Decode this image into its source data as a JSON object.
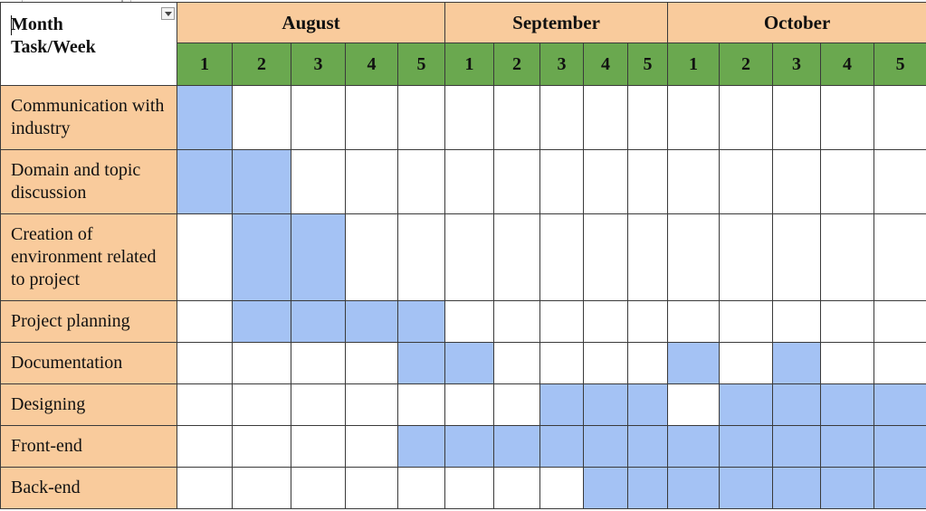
{
  "header": {
    "corner_label": "Month\nTask/Week",
    "months": [
      {
        "label": "August",
        "span": 5
      },
      {
        "label": "September",
        "span": 5
      },
      {
        "label": "October",
        "span": 5
      }
    ],
    "weeks": [
      "1",
      "2",
      "3",
      "4",
      "5",
      "1",
      "2",
      "3",
      "4",
      "5",
      "1",
      "2",
      "3",
      "4",
      "5"
    ]
  },
  "colors": {
    "header_fill": "#f9cb9c",
    "week_fill": "#6aa84f",
    "active_fill": "#a4c2f4"
  },
  "tasks": [
    {
      "label": "Communication with industry",
      "active": [
        0
      ]
    },
    {
      "label": "Domain and topic discussion",
      "active": [
        0,
        1
      ]
    },
    {
      "label": "Creation of environment related to project",
      "active": [
        1,
        2
      ]
    },
    {
      "label": "Project planning",
      "active": [
        1,
        2,
        3,
        4
      ]
    },
    {
      "label": "Documentation",
      "active": [
        4,
        5,
        10,
        12
      ]
    },
    {
      "label": "Designing",
      "active": [
        7,
        8,
        9,
        11,
        12,
        13,
        14
      ]
    },
    {
      "label": "Front-end",
      "active": [
        4,
        5,
        6,
        7,
        8,
        9,
        10,
        11,
        12,
        13,
        14
      ]
    },
    {
      "label": "Back-end",
      "active": [
        8,
        9,
        10,
        11,
        12,
        13,
        14
      ]
    }
  ],
  "row_heights": [
    71,
    71,
    96,
    46,
    46,
    46,
    46,
    46
  ]
}
